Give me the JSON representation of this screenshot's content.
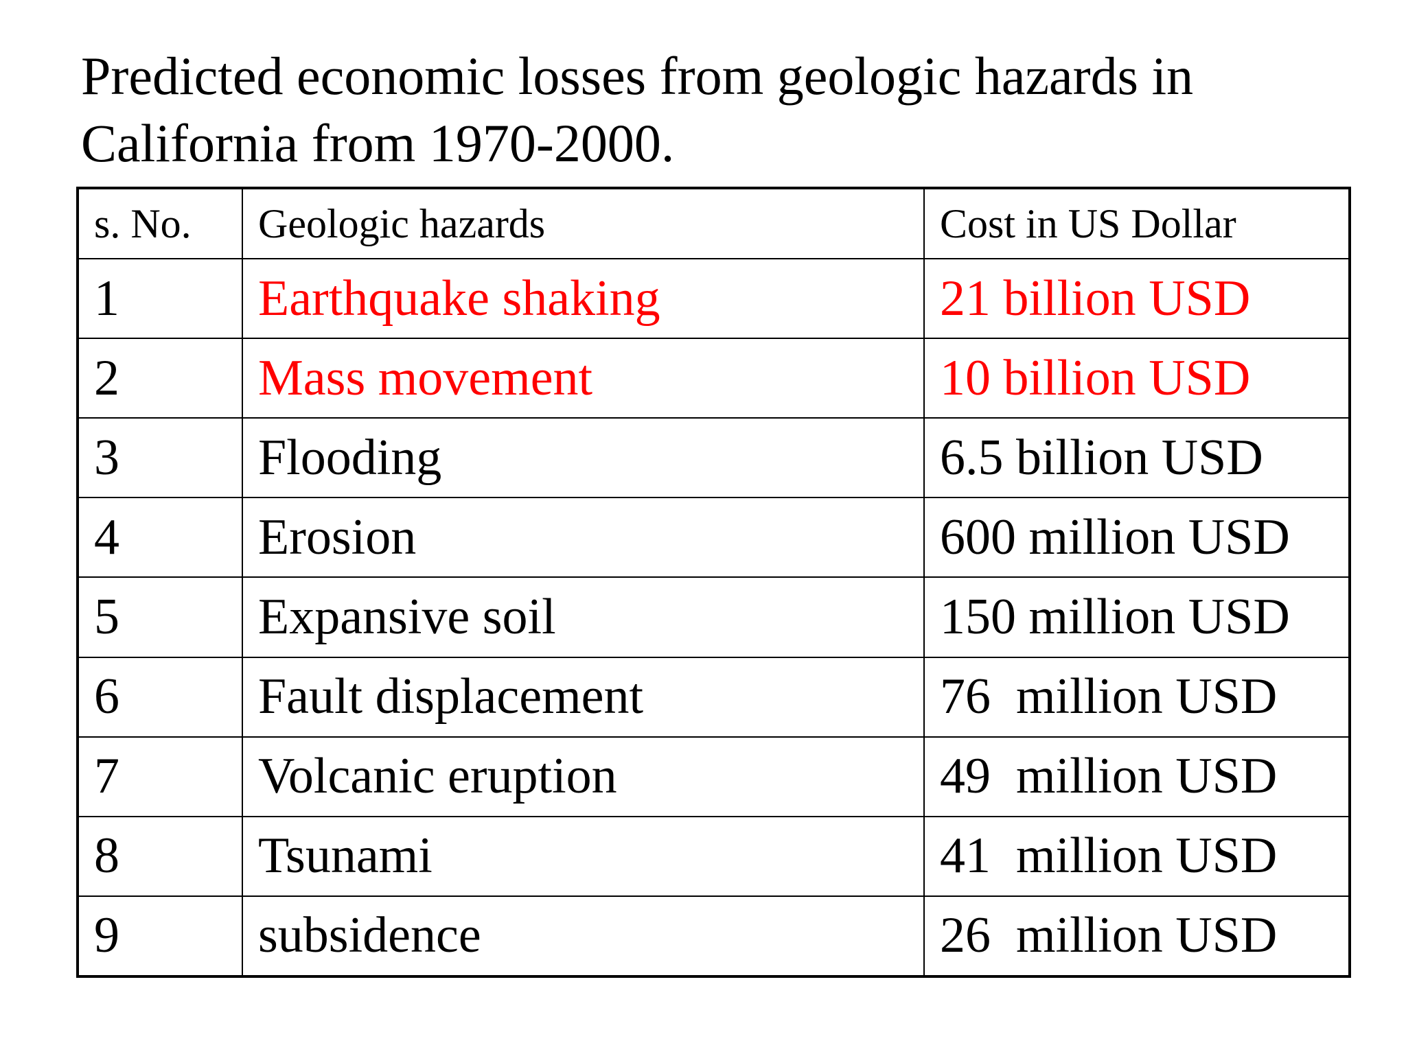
{
  "title": {
    "line1": "Predicted economic losses from geologic hazards in",
    "line2": "California from 1970-2000."
  },
  "colors": {
    "highlight": "#ff0000",
    "text": "#000000"
  },
  "table": {
    "headers": {
      "no": "s. No.",
      "hazard": "Geologic hazards",
      "cost": "Cost in US Dollar"
    },
    "rows": [
      {
        "no": "1",
        "hazard": "Earthquake shaking",
        "cost": "21 billion USD",
        "highlight": true
      },
      {
        "no": "2",
        "hazard": "Mass movement",
        "cost": "10 billion USD",
        "highlight": true
      },
      {
        "no": "3",
        "hazard": "Flooding",
        "cost": "6.5 billion USD",
        "highlight": false
      },
      {
        "no": "4",
        "hazard": "Erosion",
        "cost": "600 million USD",
        "highlight": false
      },
      {
        "no": "5",
        "hazard": "Expansive soil",
        "cost": "150 million USD",
        "highlight": false
      },
      {
        "no": "6",
        "hazard": "Fault displacement",
        "cost": "76  million USD",
        "highlight": false
      },
      {
        "no": "7",
        "hazard": "Volcanic eruption",
        "cost": "49  million USD",
        "highlight": false
      },
      {
        "no": "8",
        "hazard": "Tsunami",
        "cost": "41  million USD",
        "highlight": false
      },
      {
        "no": "9",
        "hazard": "subsidence",
        "cost": "26  million USD",
        "highlight": false
      }
    ]
  }
}
